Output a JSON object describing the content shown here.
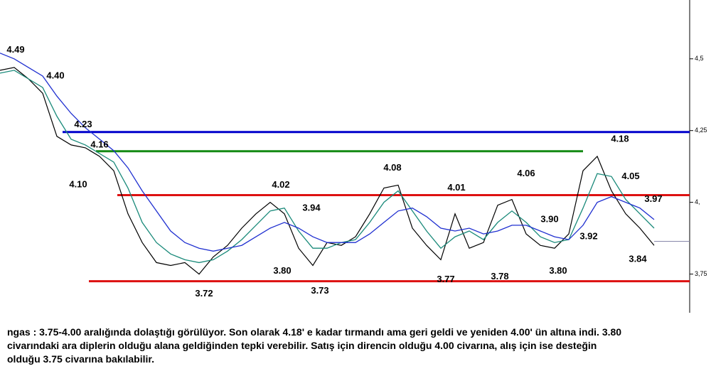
{
  "chart_data": {
    "type": "line",
    "x": [
      0,
      1,
      2,
      3,
      4,
      5,
      6,
      7,
      8,
      9,
      10,
      11,
      12,
      13,
      14,
      15,
      16,
      17,
      18,
      19,
      20,
      21,
      22,
      23,
      24,
      25,
      26,
      27,
      28,
      29,
      30,
      31,
      32,
      33,
      34,
      35,
      36,
      37,
      38,
      39,
      40,
      41,
      42,
      43,
      44,
      45,
      46
    ],
    "xlim": [
      0,
      48.5
    ],
    "ylim": [
      3.64,
      4.7
    ],
    "yticks": [
      {
        "value": 4.5,
        "label": "4,5"
      },
      {
        "value": 4.25,
        "label": "4,25"
      },
      {
        "value": 4.0,
        "label": "4,"
      },
      {
        "value": 3.75,
        "label": "3,75"
      }
    ],
    "series": [
      {
        "color": "#000000",
        "values": [
          4.46,
          4.47,
          4.43,
          4.38,
          4.23,
          4.2,
          4.19,
          4.16,
          4.11,
          3.96,
          3.86,
          3.79,
          3.78,
          3.79,
          3.75,
          3.81,
          3.85,
          3.91,
          3.96,
          4.0,
          3.96,
          3.84,
          3.78,
          3.86,
          3.85,
          3.88,
          3.96,
          4.05,
          4.06,
          3.91,
          3.85,
          3.8,
          3.96,
          3.84,
          3.86,
          3.99,
          4.01,
          3.89,
          3.85,
          3.84,
          3.89,
          4.11,
          4.16,
          4.04,
          3.96,
          3.91,
          3.85
        ]
      },
      {
        "color": "#1a8a7a",
        "values": [
          4.45,
          4.46,
          4.43,
          4.4,
          4.3,
          4.22,
          4.2,
          4.17,
          4.14,
          4.05,
          3.93,
          3.86,
          3.82,
          3.8,
          3.79,
          3.8,
          3.83,
          3.87,
          3.92,
          3.97,
          3.98,
          3.9,
          3.84,
          3.84,
          3.86,
          3.87,
          3.93,
          4.0,
          4.04,
          3.97,
          3.9,
          3.84,
          3.88,
          3.9,
          3.87,
          3.93,
          3.97,
          3.93,
          3.88,
          3.86,
          3.87,
          3.98,
          4.1,
          4.09,
          4.01,
          3.96,
          3.91
        ]
      },
      {
        "color": "#1f2fd0",
        "values": [
          4.52,
          4.5,
          4.47,
          4.44,
          4.37,
          4.31,
          4.26,
          4.22,
          4.18,
          4.12,
          4.04,
          3.97,
          3.9,
          3.86,
          3.84,
          3.83,
          3.84,
          3.85,
          3.88,
          3.91,
          3.93,
          3.91,
          3.88,
          3.86,
          3.86,
          3.86,
          3.89,
          3.93,
          3.97,
          3.98,
          3.95,
          3.91,
          3.9,
          3.91,
          3.89,
          3.9,
          3.92,
          3.92,
          3.9,
          3.88,
          3.87,
          3.92,
          4.0,
          4.02,
          4.0,
          3.98,
          3.94
        ]
      }
    ],
    "levels": [
      {
        "value": 4.245,
        "from": 4.4,
        "to": 48.5,
        "color": "#0000cc"
      },
      {
        "value": 4.178,
        "from": 6.75,
        "to": 41,
        "color": "#138a13"
      },
      {
        "value": 4.025,
        "from": 8.25,
        "to": 48.5,
        "color": "#dd1111"
      },
      {
        "value": 3.725,
        "from": 6.25,
        "to": 48.5,
        "color": "#dd1111"
      },
      {
        "value": 3.864,
        "from": 46,
        "to": 48.5,
        "color": "#8888aa"
      }
    ],
    "annotations": [
      {
        "text": "4.49",
        "x": 1.1,
        "value": 4.49,
        "position": "above"
      },
      {
        "text": "4.40",
        "x": 3.9,
        "value": 4.4,
        "position": "above"
      },
      {
        "text": "4.23",
        "x": 5.85,
        "value": 4.23,
        "position": "above"
      },
      {
        "text": "4.16",
        "x": 7.0,
        "value": 4.16,
        "position": "above"
      },
      {
        "text": "4.10",
        "x": 5.5,
        "value": 4.1,
        "position": "below"
      },
      {
        "text": "4.02",
        "x": 19.75,
        "value": 4.02,
        "position": "above"
      },
      {
        "text": "3.94",
        "x": 21.9,
        "value": 3.94,
        "position": "above"
      },
      {
        "text": "3.80",
        "x": 19.85,
        "value": 3.8,
        "position": "below"
      },
      {
        "text": "3.72",
        "x": 14.35,
        "value": 3.72,
        "position": "below"
      },
      {
        "text": "3.73",
        "x": 22.5,
        "value": 3.73,
        "position": "below"
      },
      {
        "text": "4.08",
        "x": 27.6,
        "value": 4.08,
        "position": "above"
      },
      {
        "text": "4.01",
        "x": 32.1,
        "value": 4.01,
        "position": "above"
      },
      {
        "text": "3.77",
        "x": 31.35,
        "value": 3.77,
        "position": "below"
      },
      {
        "text": "3.78",
        "x": 35.15,
        "value": 3.78,
        "position": "below"
      },
      {
        "text": "4.06",
        "x": 37.0,
        "value": 4.06,
        "position": "above"
      },
      {
        "text": "3.90",
        "x": 38.65,
        "value": 3.9,
        "position": "above"
      },
      {
        "text": "3.80",
        "x": 39.25,
        "value": 3.8,
        "position": "below"
      },
      {
        "text": "3.92",
        "x": 41.4,
        "value": 3.92,
        "position": "below"
      },
      {
        "text": "4.18",
        "x": 43.6,
        "value": 4.18,
        "position": "above"
      },
      {
        "text": "4.05",
        "x": 44.35,
        "value": 4.05,
        "position": "above"
      },
      {
        "text": "3.97",
        "x": 45.95,
        "value": 3.97,
        "position": "above"
      },
      {
        "text": "3.84",
        "x": 44.85,
        "value": 3.84,
        "position": "below"
      }
    ],
    "description": [
      "ngas : 3.75-4.00 aralığında dolaştığı görülüyor. Son olarak 4.18' e kadar tırmandı ama geri geldi ve yeniden 4.00' ün altına indi. 3.80",
      "civarındaki ara diplerin olduğu alana geldiğinden tepki verebilir. Satış için direncin olduğu 4.00 civarına, alış için ise desteğin",
      "olduğu 3.75 civarına bakılabilir."
    ]
  }
}
